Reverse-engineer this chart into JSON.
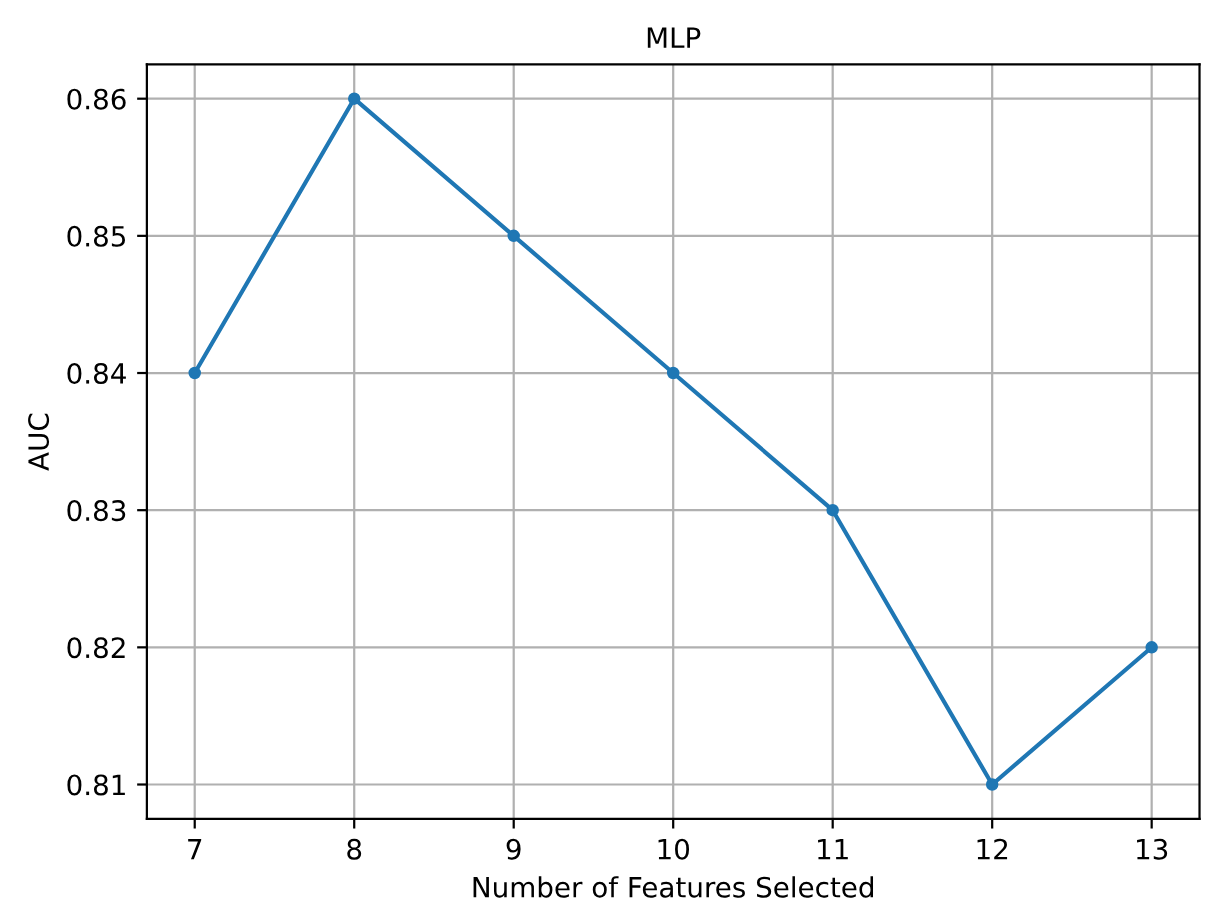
{
  "chart_data": {
    "type": "line",
    "title": "MLP",
    "xlabel": "Number of Features Selected",
    "ylabel": "AUC",
    "x": [
      7,
      8,
      9,
      10,
      11,
      12,
      13
    ],
    "series": [
      {
        "color": "#1f77b4",
        "values": [
          0.84,
          0.86,
          0.85,
          0.84,
          0.83,
          0.81,
          0.82
        ]
      }
    ],
    "xlim": [
      6.7,
      13.3
    ],
    "xticks": [
      7,
      8,
      9,
      10,
      11,
      12,
      13
    ],
    "ylim": [
      0.8075,
      0.8625
    ],
    "yticks": [
      0.81,
      0.82,
      0.83,
      0.84,
      0.85,
      0.86
    ],
    "grid": true,
    "marker": "circle",
    "line_style": "solid"
  }
}
